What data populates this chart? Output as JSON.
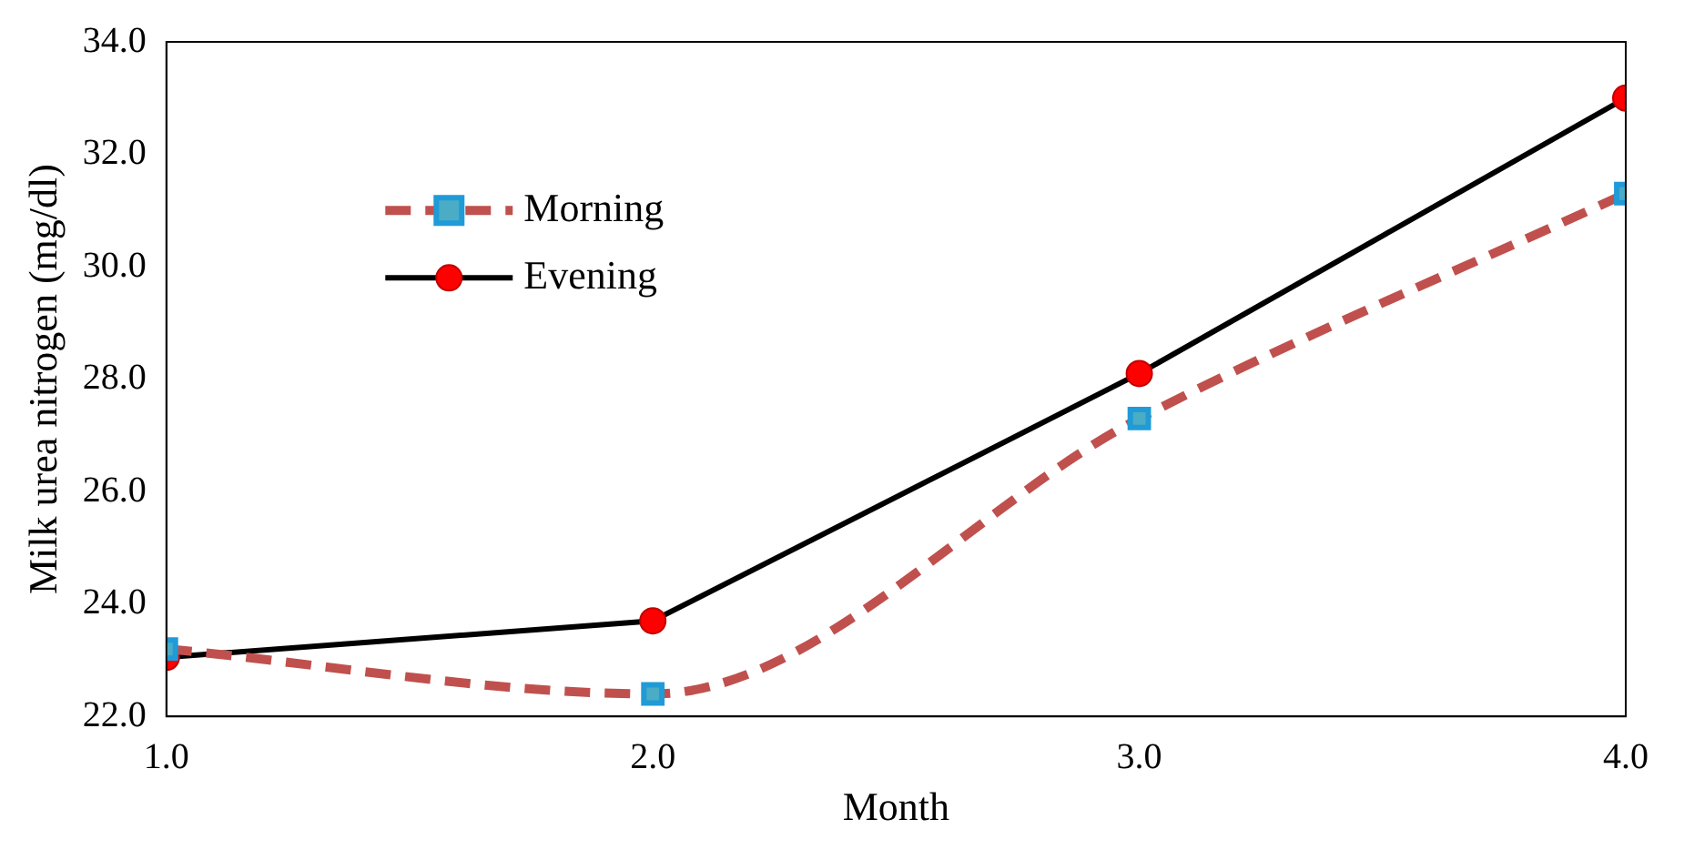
{
  "chart_data": {
    "type": "line",
    "xlabel": "Month",
    "ylabel": "Milk urea nitrogen (mg/dl)",
    "x": [
      1,
      2,
      3,
      4
    ],
    "series": [
      {
        "name": "Morning",
        "color": "#c0504d",
        "values": [
          23.2,
          22.4,
          27.3,
          31.3
        ],
        "line_style": "dashed",
        "marker": "square"
      },
      {
        "name": "Evening",
        "color": "#000000",
        "values": [
          23.05,
          23.7,
          28.1,
          33.0
        ],
        "line_style": "solid",
        "marker": "circle"
      }
    ],
    "xlim": [
      1,
      4
    ],
    "xticks": [
      {
        "value": 1,
        "label": "1.0"
      },
      {
        "value": 2,
        "label": "2.0"
      },
      {
        "value": 3,
        "label": "3.0"
      },
      {
        "value": 4,
        "label": "4.0"
      }
    ],
    "ylim": [
      22,
      34
    ],
    "yticks": [
      {
        "value": 22,
        "label": "22.0"
      },
      {
        "value": 24,
        "label": "24.0"
      },
      {
        "value": 26,
        "label": "26.0"
      },
      {
        "value": 28,
        "label": "28.0"
      },
      {
        "value": 30,
        "label": "30.0"
      },
      {
        "value": 32,
        "label": "32.0"
      },
      {
        "value": 34,
        "label": "34.0"
      }
    ],
    "grid": false,
    "legend": "top left"
  }
}
